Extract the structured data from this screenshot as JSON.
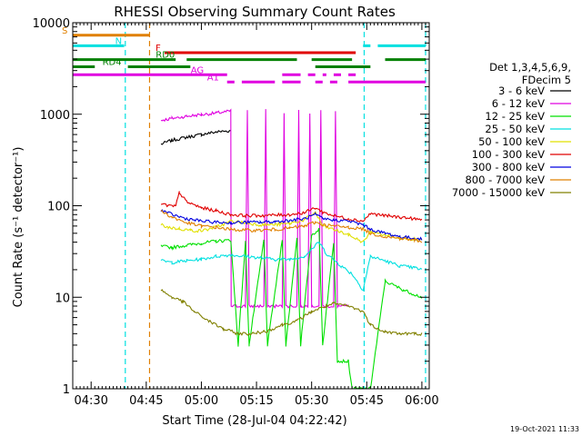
{
  "chart_data": {
    "type": "line",
    "title": "RHESSI Observing Summary Count Rates",
    "xlabel": "Start Time (28-Jul-04 04:22:42)",
    "ylabel": "Count Rate (s⁻¹ detector⁻¹)",
    "yscale": "log",
    "ylim": [
      1,
      10000
    ],
    "xlim_minutes": [
      265,
      362
    ],
    "x_ticks": [
      {
        "t": 270,
        "label": "04:30"
      },
      {
        "t": 285,
        "label": "04:45"
      },
      {
        "t": 300,
        "label": "05:00"
      },
      {
        "t": 315,
        "label": "05:15"
      },
      {
        "t": 330,
        "label": "05:30"
      },
      {
        "t": 345,
        "label": "05:45"
      },
      {
        "t": 360,
        "label": "06:00"
      }
    ],
    "y_ticks": [
      {
        "v": 1,
        "label": "1"
      },
      {
        "v": 10,
        "label": "10"
      },
      {
        "v": 100,
        "label": "100"
      },
      {
        "v": 1000,
        "label": "1000"
      },
      {
        "v": 10000,
        "label": "10000"
      }
    ],
    "legend": {
      "placement": "right",
      "header": [
        "Det 1,3,4,5,6,9,",
        "FDecim 5"
      ]
    },
    "series": [
      {
        "name": "3 - 6 keV",
        "color": "#000000",
        "points": [
          [
            289,
            470
          ],
          [
            292,
            520
          ],
          [
            296,
            560
          ],
          [
            300,
            600
          ],
          [
            304,
            640
          ],
          [
            308,
            660
          ],
          [
            308.1,
            null
          ]
        ]
      },
      {
        "name": "6 - 12 keV",
        "color": "#e000e0",
        "points": [
          [
            289,
            860
          ],
          [
            292,
            900
          ],
          [
            296,
            950
          ],
          [
            300,
            990
          ],
          [
            304,
            1030
          ],
          [
            308,
            1080
          ],
          [
            308.1,
            8
          ],
          [
            312,
            8
          ],
          [
            312.5,
            1100
          ],
          [
            313,
            8
          ],
          [
            317,
            8
          ],
          [
            317.5,
            1100
          ],
          [
            318,
            8
          ],
          [
            322,
            8
          ],
          [
            322.5,
            1050
          ],
          [
            323,
            8
          ],
          [
            326,
            8
          ],
          [
            326.5,
            1100
          ],
          [
            327,
            8
          ],
          [
            329,
            8
          ],
          [
            329.5,
            1050
          ],
          [
            330,
            8
          ],
          [
            332,
            8
          ],
          [
            332.5,
            1100
          ],
          [
            333,
            8
          ],
          [
            336,
            8
          ],
          [
            336.5,
            1050
          ],
          [
            337,
            8
          ],
          [
            340,
            8
          ]
        ]
      },
      {
        "name": "12 - 25 keV",
        "color": "#00e000",
        "points": [
          [
            289,
            36
          ],
          [
            292,
            35
          ],
          [
            296,
            37
          ],
          [
            300,
            39
          ],
          [
            304,
            41
          ],
          [
            308,
            42
          ],
          [
            310,
            3
          ],
          [
            312,
            40
          ],
          [
            313,
            3
          ],
          [
            317,
            42
          ],
          [
            318,
            3
          ],
          [
            322,
            42
          ],
          [
            323,
            3
          ],
          [
            326,
            45
          ],
          [
            327,
            3
          ],
          [
            330,
            48
          ],
          [
            332,
            55
          ],
          [
            333,
            3
          ],
          [
            336,
            40
          ],
          [
            337,
            2
          ],
          [
            340,
            2
          ],
          [
            341,
            1
          ],
          [
            346,
            1
          ],
          [
            350,
            15
          ],
          [
            355,
            12
          ],
          [
            360,
            10
          ]
        ]
      },
      {
        "name": "25 - 50 keV",
        "color": "#00e0e0",
        "points": [
          [
            289,
            25
          ],
          [
            292,
            24
          ],
          [
            296,
            25
          ],
          [
            300,
            26
          ],
          [
            304,
            28
          ],
          [
            308,
            29
          ],
          [
            312,
            28
          ],
          [
            316,
            27
          ],
          [
            320,
            26
          ],
          [
            324,
            26
          ],
          [
            328,
            28
          ],
          [
            332,
            40
          ],
          [
            334,
            30
          ],
          [
            338,
            22
          ],
          [
            341,
            18
          ],
          [
            344,
            12
          ],
          [
            346,
            28
          ],
          [
            350,
            25
          ],
          [
            354,
            22
          ],
          [
            358,
            21
          ],
          [
            360,
            20
          ]
        ]
      },
      {
        "name": "50 - 100 keV",
        "color": "#e0e000",
        "points": [
          [
            289,
            62
          ],
          [
            291,
            58
          ],
          [
            294,
            56
          ],
          [
            297,
            54
          ],
          [
            300,
            53
          ],
          [
            303,
            57
          ],
          [
            306,
            62
          ],
          [
            308,
            68
          ],
          [
            312,
            65
          ],
          [
            316,
            62
          ],
          [
            320,
            62
          ],
          [
            324,
            64
          ],
          [
            328,
            70
          ],
          [
            331,
            85
          ],
          [
            333,
            60
          ],
          [
            336,
            55
          ],
          [
            340,
            48
          ],
          [
            344,
            40
          ],
          [
            346,
            52
          ],
          [
            350,
            48
          ],
          [
            354,
            45
          ],
          [
            358,
            43
          ],
          [
            360,
            42
          ]
        ]
      },
      {
        "name": "100 - 300 keV",
        "color": "#e00000",
        "points": [
          [
            289,
            105
          ],
          [
            291,
            100
          ],
          [
            293,
            98
          ],
          [
            294,
            140
          ],
          [
            296,
            110
          ],
          [
            300,
            95
          ],
          [
            304,
            88
          ],
          [
            308,
            80
          ],
          [
            312,
            78
          ],
          [
            316,
            78
          ],
          [
            320,
            79
          ],
          [
            324,
            80
          ],
          [
            328,
            84
          ],
          [
            331,
            95
          ],
          [
            333,
            85
          ],
          [
            336,
            78
          ],
          [
            340,
            72
          ],
          [
            344,
            68
          ],
          [
            346,
            82
          ],
          [
            350,
            78
          ],
          [
            354,
            75
          ],
          [
            358,
            72
          ],
          [
            360,
            70
          ]
        ]
      },
      {
        "name": "300 - 800 keV",
        "color": "#0000e0",
        "points": [
          [
            289,
            90
          ],
          [
            292,
            80
          ],
          [
            296,
            72
          ],
          [
            300,
            68
          ],
          [
            304,
            66
          ],
          [
            308,
            65
          ],
          [
            312,
            66
          ],
          [
            316,
            66
          ],
          [
            320,
            67
          ],
          [
            324,
            69
          ],
          [
            328,
            72
          ],
          [
            331,
            80
          ],
          [
            333,
            72
          ],
          [
            336,
            70
          ],
          [
            340,
            68
          ],
          [
            344,
            62
          ],
          [
            346,
            55
          ],
          [
            350,
            50
          ],
          [
            354,
            46
          ],
          [
            358,
            44
          ],
          [
            360,
            43
          ]
        ]
      },
      {
        "name": "800 - 7000 keV",
        "color": "#e08000",
        "points": [
          [
            289,
            88
          ],
          [
            292,
            75
          ],
          [
            296,
            65
          ],
          [
            300,
            60
          ],
          [
            304,
            58
          ],
          [
            308,
            55
          ],
          [
            312,
            54
          ],
          [
            316,
            54
          ],
          [
            320,
            55
          ],
          [
            324,
            57
          ],
          [
            328,
            60
          ],
          [
            331,
            66
          ],
          [
            333,
            62
          ],
          [
            336,
            60
          ],
          [
            340,
            58
          ],
          [
            344,
            56
          ],
          [
            346,
            50
          ],
          [
            350,
            46
          ],
          [
            354,
            44
          ],
          [
            358,
            42
          ],
          [
            360,
            41
          ]
        ]
      },
      {
        "name": "7000 - 15000 keV",
        "color": "#808000",
        "points": [
          [
            289,
            12
          ],
          [
            292,
            10
          ],
          [
            295,
            9
          ],
          [
            298,
            7
          ],
          [
            302,
            5.5
          ],
          [
            306,
            4.5
          ],
          [
            310,
            4
          ],
          [
            314,
            4
          ],
          [
            318,
            4.3
          ],
          [
            322,
            5
          ],
          [
            326,
            5.5
          ],
          [
            330,
            7
          ],
          [
            334,
            8
          ],
          [
            336,
            8.5
          ],
          [
            340,
            8
          ],
          [
            344,
            7
          ],
          [
            346,
            5
          ],
          [
            350,
            4.2
          ],
          [
            354,
            4
          ],
          [
            358,
            4
          ],
          [
            360,
            4
          ]
        ]
      }
    ],
    "state_bars": [
      {
        "label": "S",
        "color": "#e08000",
        "value": 7300,
        "segments": [
          [
            265,
            286
          ]
        ]
      },
      {
        "label": "N",
        "color": "#00e0e0",
        "value": 5600,
        "segments": [
          [
            265,
            279
          ],
          [
            344,
            346
          ],
          [
            348,
            361
          ]
        ]
      },
      {
        "label": "F",
        "color": "#e00000",
        "value": 4700,
        "segments": [
          [
            290,
            342
          ]
        ]
      },
      {
        "label": "RD0",
        "color": "#008000",
        "value": 3950,
        "segments": [
          [
            265,
            293
          ],
          [
            296,
            326
          ],
          [
            330,
            341
          ],
          [
            350,
            361
          ]
        ]
      },
      {
        "label": "RD4",
        "color": "#008000",
        "value": 3300,
        "segments": [
          [
            265,
            271
          ],
          [
            280,
            297
          ],
          [
            331,
            346
          ]
        ]
      },
      {
        "label": "AG",
        "color": "#e000e0",
        "value": 2700,
        "segments": [
          [
            265,
            307
          ],
          [
            322,
            327
          ],
          [
            329,
            331
          ],
          [
            333,
            334
          ],
          [
            336,
            338
          ],
          [
            340,
            342
          ]
        ]
      },
      {
        "label": "A1",
        "color": "#e000e0",
        "value": 2250,
        "segments": [
          [
            307,
            309
          ],
          [
            311,
            320
          ],
          [
            322,
            327
          ],
          [
            331,
            333
          ],
          [
            335,
            337
          ],
          [
            340,
            361
          ]
        ]
      }
    ],
    "vertical_lines": [
      {
        "t": 279.3,
        "color": "#00e0e0"
      },
      {
        "t": 285.9,
        "color": "#e08000"
      },
      {
        "t": 344.3,
        "color": "#00e0e0"
      },
      {
        "t": 361.0,
        "color": "#00e0e0"
      }
    ],
    "timestamp": "19-Oct-2021 11:33"
  }
}
